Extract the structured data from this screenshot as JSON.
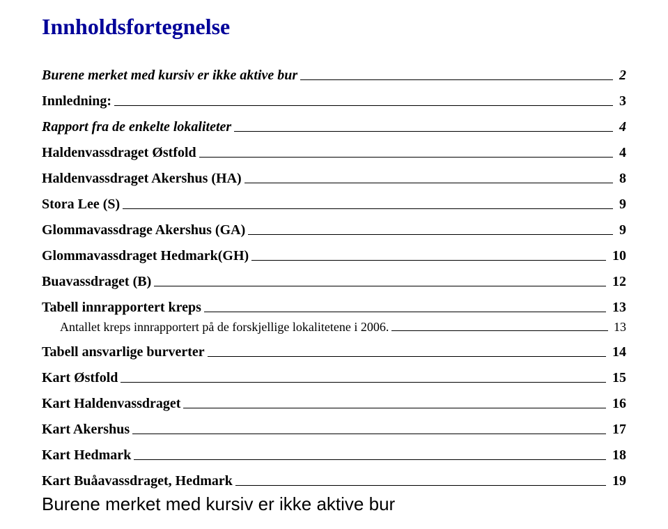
{
  "title": "Innholdsfortegnelse",
  "toc": [
    {
      "label": "Burene merket med kursiv er ikke aktive bur",
      "page": "2",
      "cls": "lvl0",
      "leader_mb": 5
    },
    {
      "label": "Innledning:",
      "page": "3",
      "cls": "lvl1 gap-med",
      "leader_mb": 5
    },
    {
      "label": "Rapport fra de enkelte lokaliteter",
      "page": "4",
      "cls": "lvl2 gap-med",
      "leader_mb": 5
    },
    {
      "label": "Haldenvassdraget Østfold",
      "page": "4",
      "cls": "lvl1 gap-med",
      "leader_mb": 5
    },
    {
      "label": "Haldenvassdraget Akershus (HA)",
      "page": "8",
      "cls": "lvl1 gap-med",
      "leader_mb": 5
    },
    {
      "label": "Stora Lee (S)",
      "page": "9",
      "cls": "lvl1 gap-med",
      "leader_mb": 5
    },
    {
      "label": "Glommavassdrage Akershus (GA)",
      "page": "9",
      "cls": "lvl1 gap-med",
      "leader_mb": 5
    },
    {
      "label": "Glommavassdraget Hedmark(GH)",
      "page": "10",
      "cls": "lvl1 gap-med",
      "leader_mb": 5
    },
    {
      "label": "Buavassdraget (B)",
      "page": "12",
      "cls": "lvl1 gap-med",
      "leader_mb": 5
    },
    {
      "label": "Tabell innrapportert kreps",
      "page": "13",
      "cls": "lvl1 gap-med",
      "leader_mb": 5
    },
    {
      "label": "Antallet kreps innrapportert på de forskjellige lokalitetene i 2006.",
      "page": "13",
      "cls": "lvl3",
      "leader_mb": 5
    },
    {
      "label": "Tabell ansvarlige burverter",
      "page": "14",
      "cls": "lvl1 gap-med",
      "leader_mb": 5
    },
    {
      "label": "Kart Østfold",
      "page": "15",
      "cls": "lvl1 gap-med",
      "leader_mb": 5
    },
    {
      "label": "Kart Haldenvassdraget",
      "page": "16",
      "cls": "lvl1 gap-med",
      "leader_mb": 5
    },
    {
      "label": "Kart Akershus",
      "page": "17",
      "cls": "lvl1 gap-med",
      "leader_mb": 5
    },
    {
      "label": "Kart Hedmark",
      "page": "18",
      "cls": "lvl1 gap-med",
      "leader_mb": 5
    },
    {
      "label": "Kart Buåavassdraget, Hedmark",
      "page": "19",
      "cls": "lvl1 gap-med",
      "leader_mb": 5
    }
  ],
  "footer_text": "Burene merket med kursiv er ikke aktive bur",
  "colors": {
    "title_color": "#000099",
    "text_color": "#000000",
    "background": "#ffffff"
  },
  "typography": {
    "title_fontsize": 32,
    "lvl1_fontsize": 20,
    "lvl3_fontsize": 18,
    "footer_fontsize": 26,
    "font_family_body": "Times New Roman",
    "font_family_footer": "Arial"
  }
}
